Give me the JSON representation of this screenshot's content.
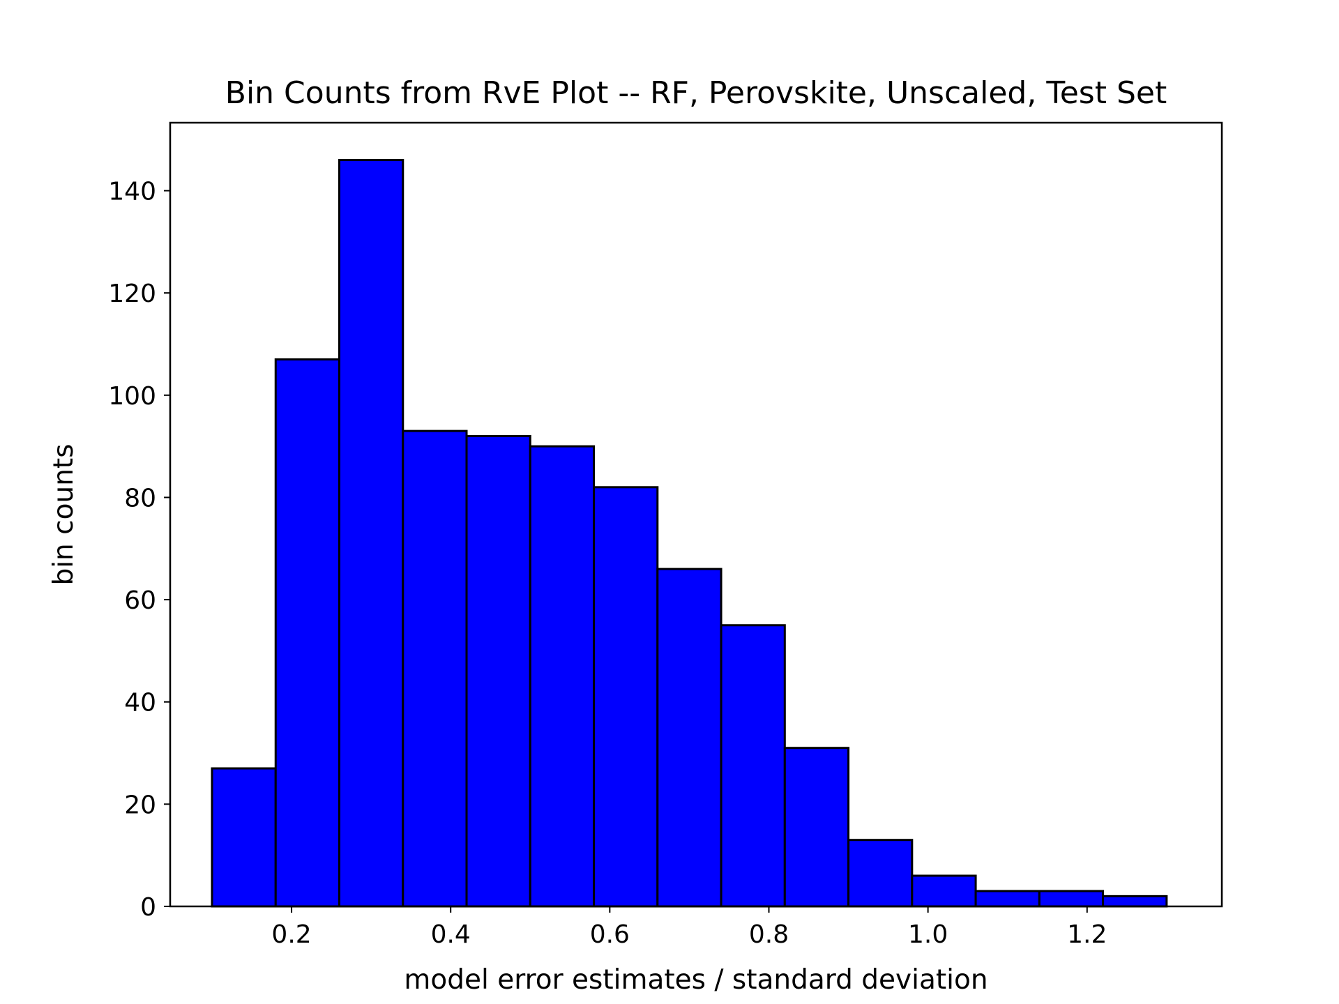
{
  "chart_data": {
    "type": "bar",
    "title": "Bin Counts from RvE Plot -- RF, Perovskite, Unscaled, Test Set",
    "xlabel": "model error estimates / standard deviation",
    "ylabel": "bin counts",
    "xlim": [
      0.0474,
      1.3694
    ],
    "ylim": [
      0,
      153.3
    ],
    "xticks": [
      0.2,
      0.4,
      0.6,
      0.8,
      1.0,
      1.2
    ],
    "xtick_labels": [
      "0.2",
      "0.4",
      "0.6",
      "0.8",
      "1.0",
      "1.2"
    ],
    "yticks": [
      0,
      20,
      40,
      60,
      80,
      100,
      120,
      140
    ],
    "ytick_labels": [
      "0",
      "20",
      "40",
      "60",
      "80",
      "100",
      "120",
      "140"
    ],
    "grid": false,
    "legend": false,
    "bin_edges": [
      0.1,
      0.18,
      0.26,
      0.34,
      0.42,
      0.5,
      0.58,
      0.66,
      0.74,
      0.82,
      0.9,
      0.98,
      1.06,
      1.14,
      1.22,
      1.3
    ],
    "values": [
      27,
      107,
      146,
      93,
      92,
      90,
      82,
      66,
      55,
      31,
      13,
      6,
      3,
      3,
      2
    ],
    "colors": {
      "bar_fill": "#0000ff",
      "bar_edge": "#000000",
      "axes": "#000000",
      "background": "#ffffff"
    }
  }
}
